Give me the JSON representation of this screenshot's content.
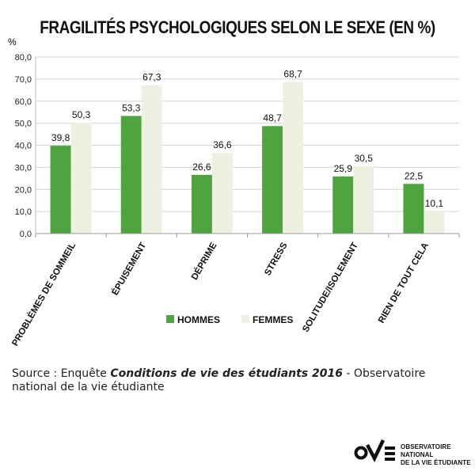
{
  "chart_data": {
    "type": "bar",
    "title": "FRAGILITÉS PSYCHOLOGIQUES SELON LE SEXE (EN %)",
    "ylabel": "%",
    "ylim": [
      0,
      80
    ],
    "yticks": [
      "0,0",
      "10,0",
      "20,0",
      "30,0",
      "40,0",
      "50,0",
      "60,0",
      "70,0",
      "80,0"
    ],
    "grid": true,
    "legend_position": "bottom",
    "categories": [
      "PROBLÈMES DE SOMMEIL",
      "ÉPUISEMENT",
      "DÉPRIME",
      "STRESS",
      "SOLITUDE/ISOLEMENT",
      "RIEN DE TOUT CELA"
    ],
    "series": [
      {
        "name": "HOMMES",
        "color": "#4ea53f",
        "values": [
          39.8,
          53.3,
          26.6,
          48.7,
          25.9,
          22.5
        ],
        "labels": [
          "39,8",
          "53,3",
          "26,6",
          "48,7",
          "25,9",
          "22,5"
        ]
      },
      {
        "name": "FEMMES",
        "color": "#eef1e2",
        "values": [
          50.3,
          67.3,
          36.6,
          68.7,
          30.5,
          10.1
        ],
        "labels": [
          "50,3",
          "67,3",
          "36,6",
          "68,7",
          "30,5",
          "10,1"
        ]
      }
    ]
  },
  "source": {
    "prefix": "Source : Enquête ",
    "emphasis": "Conditions de vie des étudiants 2016",
    "suffix": " - Observatoire national de la vie étudiante"
  },
  "logo": {
    "line1": "OBSERVATOIRE NATIONAL",
    "line2": "DE LA VIE ÉTUDIANTE"
  }
}
